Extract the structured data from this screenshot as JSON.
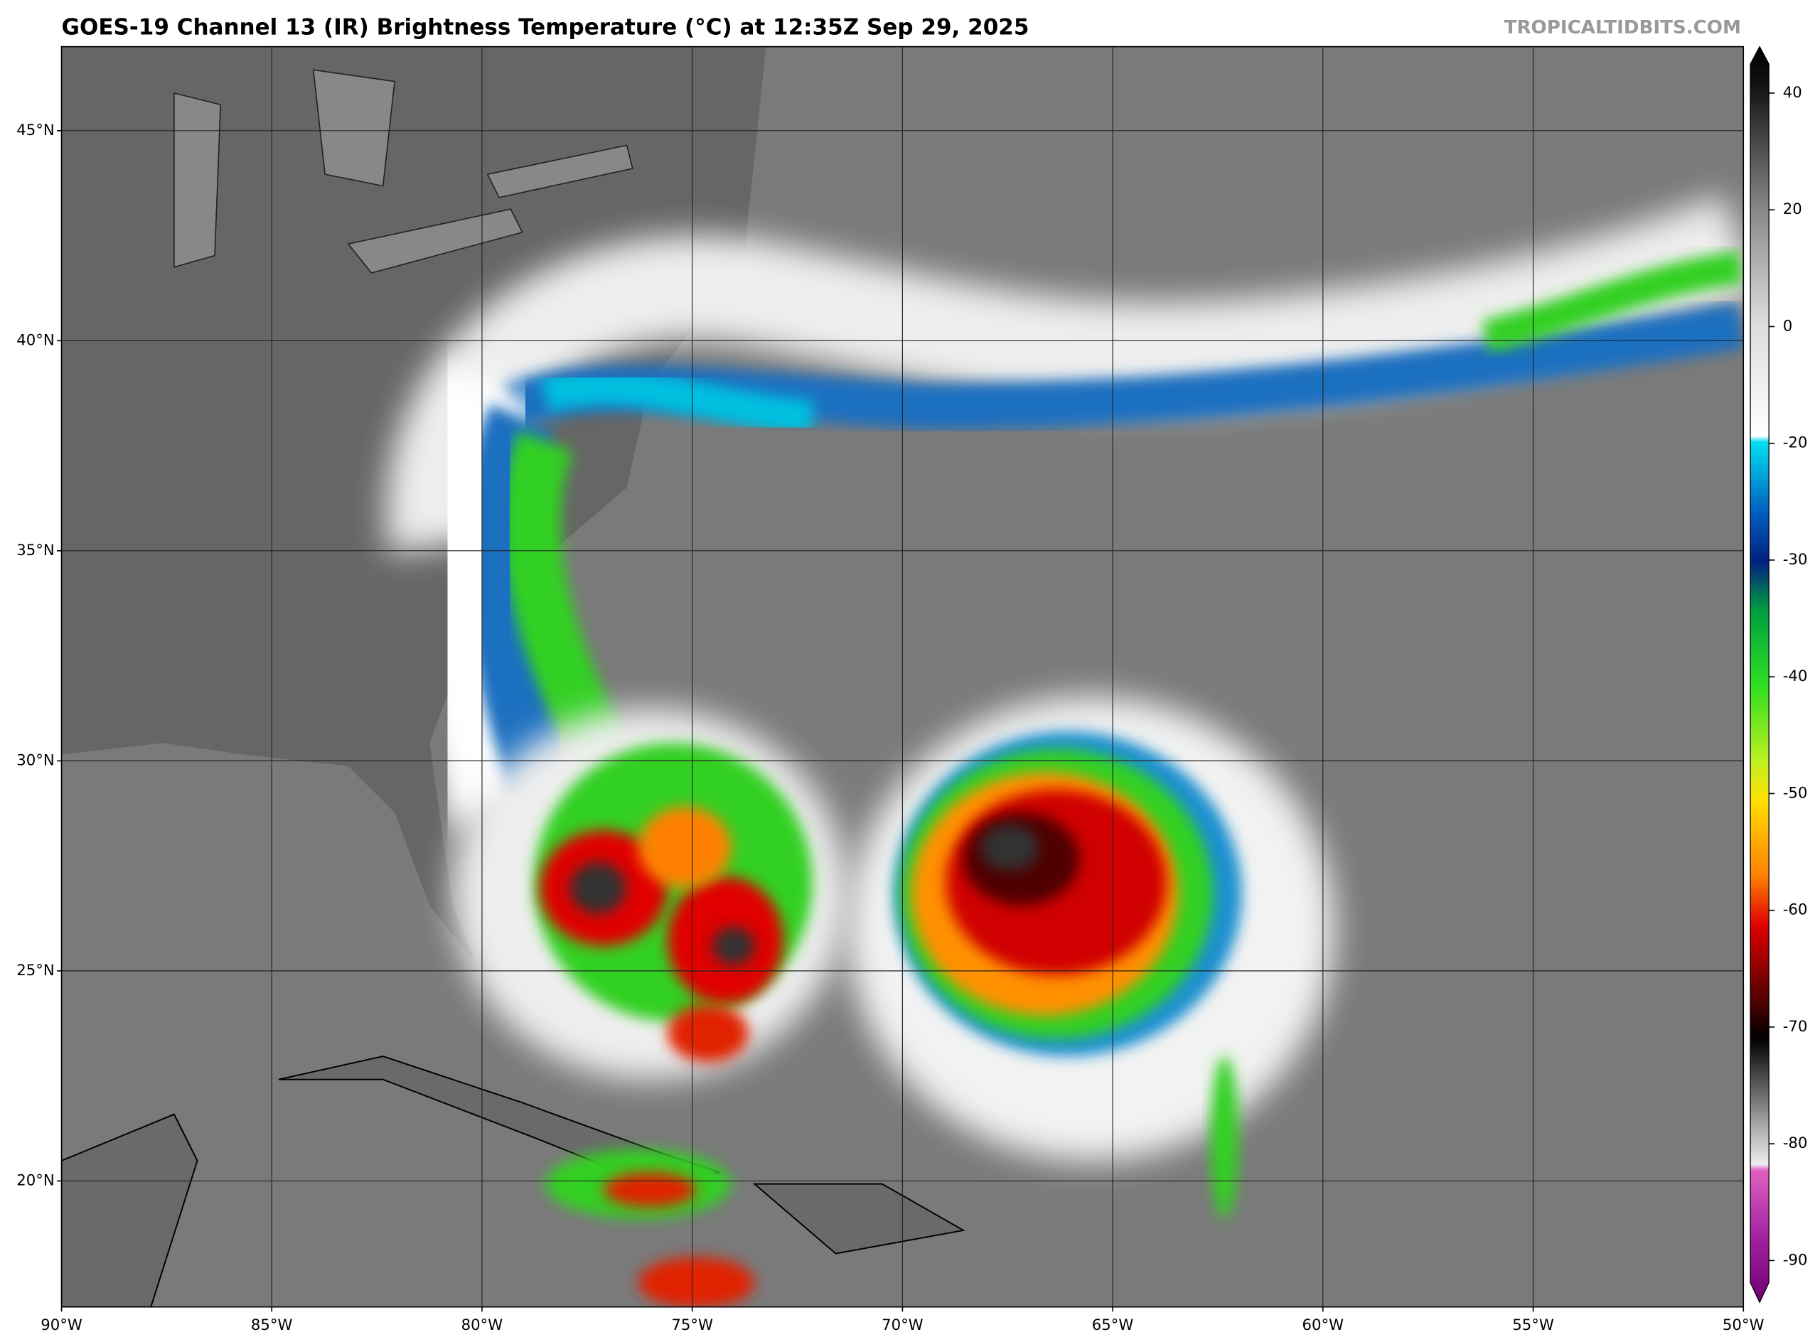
{
  "header": {
    "title": "GOES-19 Channel 13 (IR) Brightness Temperature (°C) at 12:35Z Sep 29, 2025",
    "watermark": "TROPICALTIDBITS.COM"
  },
  "map": {
    "lon_lim": [
      -90,
      -50
    ],
    "lat_lim": [
      17,
      47
    ],
    "lon_ticks": [
      {
        "value": -90,
        "label": "90°W"
      },
      {
        "value": -85,
        "label": "85°W"
      },
      {
        "value": -80,
        "label": "80°W"
      },
      {
        "value": -75,
        "label": "75°W"
      },
      {
        "value": -70,
        "label": "70°W"
      },
      {
        "value": -65,
        "label": "65°W"
      },
      {
        "value": -60,
        "label": "60°W"
      },
      {
        "value": -55,
        "label": "55°W"
      },
      {
        "value": -50,
        "label": "50°W"
      }
    ],
    "lat_ticks": [
      {
        "value": 20,
        "label": "20°N"
      },
      {
        "value": 25,
        "label": "25°N"
      },
      {
        "value": 30,
        "label": "30°N"
      },
      {
        "value": 35,
        "label": "35°N"
      },
      {
        "value": 40,
        "label": "40°N"
      },
      {
        "value": 45,
        "label": "45°N"
      }
    ]
  },
  "colorbar": {
    "ticks": [
      40,
      20,
      0,
      -20,
      -30,
      -40,
      -50,
      -60,
      -70,
      -80,
      -90
    ]
  }
}
